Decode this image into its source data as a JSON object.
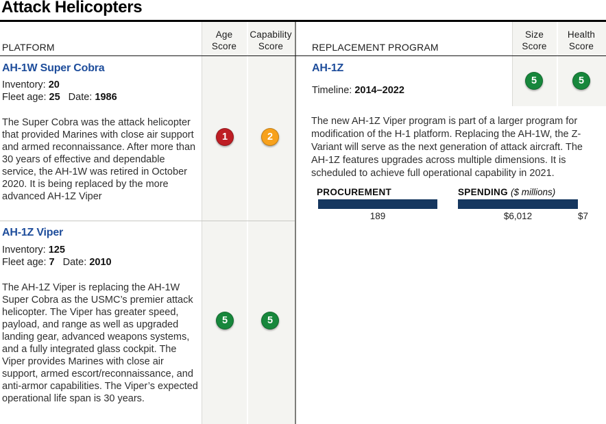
{
  "title": "Attack Helicopters",
  "accent_blue": "#1e4d9b",
  "columns": {
    "platform": "PLATFORM",
    "age_score": "Age\nScore",
    "capability_score": "Capability\nScore",
    "replacement_program": "REPLACEMENT PROGRAM",
    "size_score": "Size\nScore",
    "health_score": "Health\nScore"
  },
  "platforms": [
    {
      "name": "AH-1W Super Cobra",
      "inventory_label": "Inventory:",
      "inventory": "20",
      "fleet_age_label": "Fleet age:",
      "fleet_age": "25",
      "date_label": "Date:",
      "date": "1986",
      "description": "The Super Cobra was the attack helicopter that provided Marines with close air support and armed reconnaissance.  After more than 30 years of effective and dependable service, the AH-1W was retired in October 2020.  It is being replaced by the more advanced AH-1Z Viper",
      "age_score": {
        "value": "1",
        "color": "#be1e24"
      },
      "capability_score": {
        "value": "2",
        "color": "#f7a11c"
      }
    },
    {
      "name": "AH-1Z Viper",
      "inventory_label": "Inventory:",
      "inventory": "125",
      "fleet_age_label": "Fleet age:",
      "fleet_age": "7",
      "date_label": "Date:",
      "date": "2010",
      "description": "The AH-1Z Viper is replacing the AH-1W Super Cobra as the USMC’s premier attack helicopter. The Viper has greater speed, payload, and range as well as upgraded landing gear, advanced weapons systems, and a fully integrated glass cockpit. The Viper provides Marines with close air support, armed escort/reconnaissance, and anti-armor capabilities. The Viper’s expected operational life span is 30 years.",
      "age_score": {
        "value": "5",
        "color": "#17873c"
      },
      "capability_score": {
        "value": "5",
        "color": "#17873c"
      }
    }
  ],
  "replacement": {
    "name": "AH-1Z",
    "timeline_label": "Timeline:",
    "timeline": "2014–2022",
    "size_score": {
      "value": "5",
      "color": "#17873c"
    },
    "health_score": {
      "value": "5",
      "color": "#17873c"
    },
    "description": "The new AH-1Z Viper program is part of a larger program for modification of the H-1 platform. Replacing the AH-1W, the Z-Variant will serve as the next generation of attack aircraft. The AH-1Z features upgrades across multiple dimensions. It is scheduled to achieve full operational capability in 2021.",
    "bar_color": "#16375f"
  },
  "chart_data": [
    {
      "type": "bar",
      "title": "PROCUREMENT",
      "values": [
        189
      ],
      "value_labels": [
        "189"
      ]
    },
    {
      "type": "bar",
      "title": "SPENDING",
      "subtitle": "($ millions)",
      "values": [
        6012,
        7
      ],
      "value_labels": [
        "$6,012",
        "$7"
      ]
    }
  ]
}
